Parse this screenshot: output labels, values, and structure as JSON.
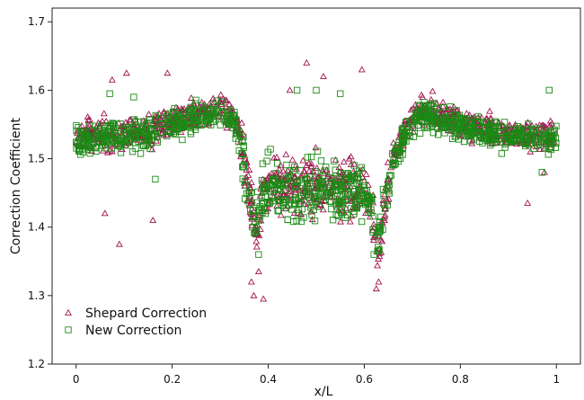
{
  "chart_data": {
    "type": "scatter",
    "title": "",
    "xlabel": "x/L",
    "ylabel": "Correction Coefficient",
    "xlim": [
      -0.05,
      1.05
    ],
    "ylim": [
      1.2,
      1.72
    ],
    "x_ticks": [
      "0",
      "0.2",
      "0.4",
      "0.6",
      "0.8",
      "1"
    ],
    "x_tick_values": [
      0,
      0.2,
      0.4,
      0.6,
      0.8,
      1.0
    ],
    "y_ticks": [
      "1.2",
      "1.3",
      "1.4",
      "1.5",
      "1.6",
      "1.7"
    ],
    "y_tick_values": [
      1.2,
      1.3,
      1.4,
      1.5,
      1.6,
      1.7
    ],
    "grid": false,
    "legend_position": "bottom-left",
    "series": [
      {
        "name": "Shepard Correction",
        "marker": "triangle",
        "color": "#a0144f",
        "trend": [
          [
            0.0,
            1.535
          ],
          [
            0.05,
            1.535
          ],
          [
            0.1,
            1.535
          ],
          [
            0.15,
            1.54
          ],
          [
            0.2,
            1.555
          ],
          [
            0.25,
            1.565
          ],
          [
            0.3,
            1.575
          ],
          [
            0.33,
            1.56
          ],
          [
            0.345,
            1.52
          ],
          [
            0.36,
            1.45
          ],
          [
            0.375,
            1.39
          ],
          [
            0.39,
            1.455
          ],
          [
            0.45,
            1.46
          ],
          [
            0.5,
            1.46
          ],
          [
            0.55,
            1.46
          ],
          [
            0.6,
            1.455
          ],
          [
            0.615,
            1.42
          ],
          [
            0.63,
            1.37
          ],
          [
            0.645,
            1.44
          ],
          [
            0.66,
            1.5
          ],
          [
            0.69,
            1.55
          ],
          [
            0.72,
            1.57
          ],
          [
            0.75,
            1.565
          ],
          [
            0.8,
            1.55
          ],
          [
            0.85,
            1.545
          ],
          [
            0.9,
            1.535
          ],
          [
            0.95,
            1.535
          ],
          [
            1.0,
            1.53
          ]
        ],
        "outliers": [
          [
            0.06,
            1.42
          ],
          [
            0.09,
            1.375
          ],
          [
            0.16,
            1.41
          ],
          [
            0.19,
            1.625
          ],
          [
            0.075,
            1.615
          ],
          [
            0.105,
            1.625
          ],
          [
            0.37,
            1.3
          ],
          [
            0.39,
            1.295
          ],
          [
            0.48,
            1.64
          ],
          [
            0.515,
            1.62
          ],
          [
            0.595,
            1.63
          ],
          [
            0.625,
            1.31
          ],
          [
            0.63,
            1.32
          ],
          [
            0.94,
            1.435
          ],
          [
            0.975,
            1.48
          ],
          [
            0.445,
            1.6
          ],
          [
            0.365,
            1.32
          ],
          [
            0.38,
            1.335
          ]
        ]
      },
      {
        "name": "New Correction",
        "marker": "square",
        "color": "#1a8a14",
        "trend": [
          [
            0.0,
            1.53
          ],
          [
            0.05,
            1.53
          ],
          [
            0.1,
            1.535
          ],
          [
            0.15,
            1.535
          ],
          [
            0.2,
            1.55
          ],
          [
            0.25,
            1.56
          ],
          [
            0.3,
            1.57
          ],
          [
            0.33,
            1.555
          ],
          [
            0.345,
            1.51
          ],
          [
            0.36,
            1.45
          ],
          [
            0.375,
            1.4
          ],
          [
            0.39,
            1.455
          ],
          [
            0.45,
            1.455
          ],
          [
            0.5,
            1.455
          ],
          [
            0.55,
            1.455
          ],
          [
            0.6,
            1.45
          ],
          [
            0.615,
            1.42
          ],
          [
            0.63,
            1.38
          ],
          [
            0.645,
            1.44
          ],
          [
            0.66,
            1.5
          ],
          [
            0.69,
            1.545
          ],
          [
            0.72,
            1.565
          ],
          [
            0.75,
            1.56
          ],
          [
            0.8,
            1.545
          ],
          [
            0.85,
            1.54
          ],
          [
            0.9,
            1.53
          ],
          [
            0.95,
            1.53
          ],
          [
            1.0,
            1.525
          ]
        ],
        "outliers": [
          [
            0.07,
            1.595
          ],
          [
            0.12,
            1.59
          ],
          [
            0.165,
            1.47
          ],
          [
            0.38,
            1.36
          ],
          [
            0.46,
            1.6
          ],
          [
            0.5,
            1.6
          ],
          [
            0.55,
            1.595
          ],
          [
            0.62,
            1.36
          ],
          [
            0.97,
            1.48
          ],
          [
            0.985,
            1.6
          ]
        ]
      }
    ]
  }
}
